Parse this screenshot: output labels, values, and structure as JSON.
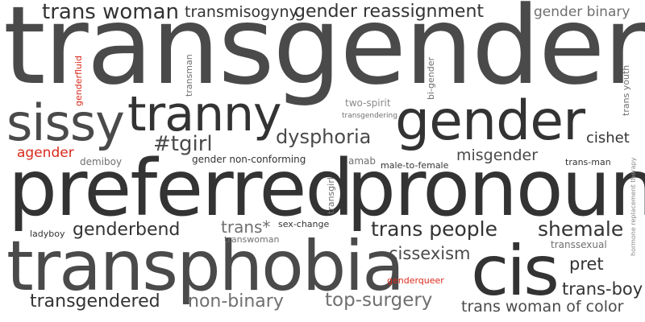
{
  "cloud": {
    "accent_color": "#d92a1c",
    "words": {
      "transgender": "transgender",
      "preferred": "preferred",
      "pronoun": "pronoun",
      "transphobia": "transphobia",
      "cis": "cis",
      "gender": "gender",
      "tranny": "tranny",
      "sissy": "sissy",
      "trans_woman": "trans woman",
      "transmisogyny": "transmisogyny",
      "gender_reassignment": "gender reassignment",
      "gender_binary": "gender binary",
      "transman": "transman",
      "genderfluid": "genderfluid",
      "bi_gender": "bi-gender",
      "trans_youth": "trans youth",
      "two_spirit": "two-spirit",
      "transgendering": "transgendering",
      "dysphoria": "dysphoria",
      "tgirl": "#tgirl",
      "cishet": "cishet",
      "agender": "agender",
      "demiboy": "demiboy",
      "gender_non_conforming": "gender non-conforming",
      "amab": "amab",
      "male_to_female": "male-to-female",
      "misgender": "misgender",
      "trans_man": "trans-man",
      "transgirl": "transgirl",
      "hrt": "hormone replacement therapy",
      "genderbend": "genderbend",
      "trans_star": "trans*",
      "sex_change": "sex-change",
      "trans_people": "trans people",
      "shemale": "shemale",
      "ladyboy": "ladyboy",
      "transwoman": "transwoman",
      "transsexual": "transsexual",
      "cissexism": "cissexism",
      "pret": "pret",
      "genderqueer": "genderqueer",
      "trans_boy": "trans-boy",
      "transgendered": "transgendered",
      "non_binary": "non-binary",
      "top_surgery": "top-surgery",
      "trans_woman_of_color": "trans woman of color"
    }
  }
}
